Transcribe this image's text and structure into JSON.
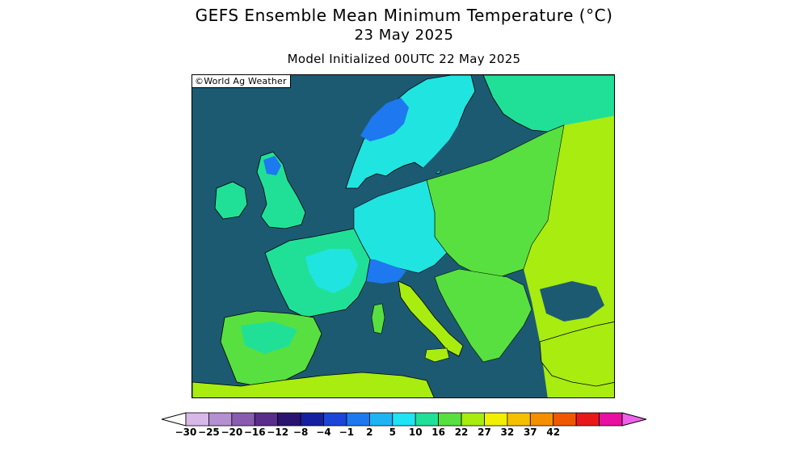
{
  "header": {
    "title": "GEFS Ensemble Mean Minimum Temperature (°C)",
    "date": "23 May 2025",
    "init": "Model Initialized 00UTC 22 May 2025"
  },
  "map": {
    "watermark": "©World Ag Weather",
    "ocean_color": "#1c5a72"
  },
  "colorbar": {
    "ticks": [
      "-30",
      "-25",
      "-20",
      "-16",
      "-12",
      "-8",
      "-4",
      "-1",
      "2",
      "5",
      "10",
      "16",
      "22",
      "27",
      "32",
      "37",
      "42"
    ],
    "colors": [
      "#ffffff",
      "#d8b8e8",
      "#b490d0",
      "#8a5cb0",
      "#5a2c8c",
      "#2a1470",
      "#1420a0",
      "#1c44d8",
      "#1e78f0",
      "#1eb4f4",
      "#1ee4f4",
      "#20e098",
      "#58e040",
      "#a8ec10",
      "#f0f000",
      "#f4c000",
      "#f49000",
      "#f05800",
      "#e81818",
      "#e810a0",
      "#f060e8"
    ]
  }
}
